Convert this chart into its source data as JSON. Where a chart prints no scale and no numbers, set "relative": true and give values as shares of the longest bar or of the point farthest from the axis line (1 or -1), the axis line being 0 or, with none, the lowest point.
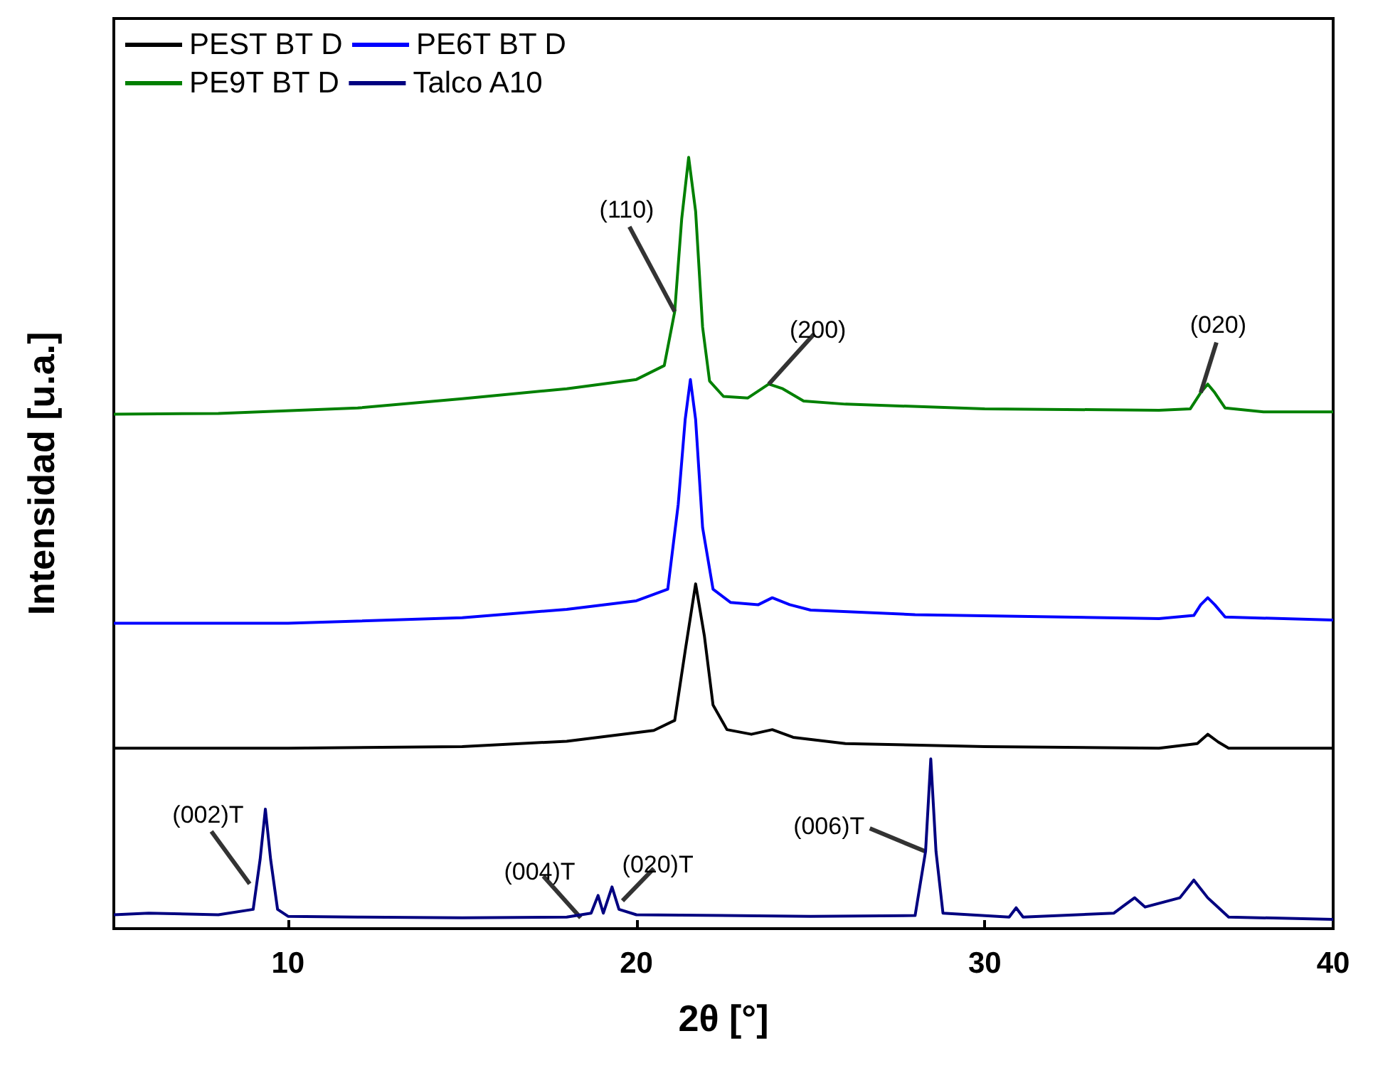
{
  "chart_data": {
    "type": "line",
    "xlabel": "2θ [°]",
    "ylabel": "Intensidad [u.a.]",
    "relative": true,
    "xlim": [
      5,
      40
    ],
    "xticks": [
      10,
      20,
      30,
      40
    ],
    "legend": "top left",
    "grid": false,
    "marker": "none",
    "line_style": "solid",
    "series": [
      {
        "name": "PEST BT D",
        "color": "#000000",
        "x": [
          5,
          10,
          15,
          18,
          20.5,
          21.1,
          21.4,
          21.7,
          21.95,
          22.2,
          22.6,
          23.3,
          23.9,
          24.5,
          26,
          30,
          35,
          36.1,
          36.4,
          36.7,
          37,
          40
        ],
        "values": [
          0.234,
          0.234,
          0.236,
          0.243,
          0.257,
          0.27,
          0.36,
          0.447,
          0.38,
          0.29,
          0.258,
          0.252,
          0.258,
          0.248,
          0.24,
          0.236,
          0.234,
          0.24,
          0.252,
          0.242,
          0.234,
          0.234
        ]
      },
      {
        "name": "PE6T BT D",
        "color": "#0000ff",
        "x": [
          5,
          10,
          15,
          18,
          20,
          20.9,
          21.2,
          21.4,
          21.55,
          21.7,
          21.9,
          22.2,
          22.7,
          23.5,
          23.9,
          24.4,
          25,
          28,
          35,
          36,
          36.2,
          36.4,
          36.6,
          36.9,
          40
        ],
        "values": [
          0.396,
          0.396,
          0.403,
          0.414,
          0.425,
          0.44,
          0.55,
          0.66,
          0.712,
          0.66,
          0.52,
          0.44,
          0.423,
          0.42,
          0.429,
          0.42,
          0.413,
          0.407,
          0.402,
          0.406,
          0.42,
          0.429,
          0.42,
          0.404,
          0.4
        ]
      },
      {
        "name": "PE9T BT D",
        "color": "#008000",
        "x": [
          5,
          8,
          12,
          15,
          18,
          20,
          20.8,
          21.1,
          21.3,
          21.5,
          21.7,
          21.9,
          22.1,
          22.5,
          23.2,
          23.8,
          24.2,
          24.8,
          26,
          30,
          35,
          35.9,
          36.2,
          36.4,
          36.6,
          36.9,
          38,
          40
        ],
        "values": [
          0.667,
          0.668,
          0.675,
          0.687,
          0.7,
          0.712,
          0.73,
          0.8,
          0.92,
          1,
          0.93,
          0.78,
          0.71,
          0.69,
          0.688,
          0.706,
          0.7,
          0.684,
          0.68,
          0.674,
          0.672,
          0.674,
          0.695,
          0.706,
          0.695,
          0.675,
          0.67,
          0.67
        ]
      },
      {
        "name": "Talco A10",
        "color": "#000080",
        "x": [
          5,
          6,
          8,
          9,
          9.2,
          9.35,
          9.5,
          9.7,
          10,
          12,
          15,
          18,
          18.7,
          18.9,
          19.05,
          19.3,
          19.5,
          20,
          25,
          28,
          28.3,
          28.45,
          28.6,
          28.8,
          30.7,
          30.9,
          31.1,
          33.7,
          34,
          34.3,
          34.6,
          35.6,
          36,
          36.4,
          37,
          40
        ],
        "values": [
          0.018,
          0.02,
          0.018,
          0.025,
          0.09,
          0.155,
          0.09,
          0.025,
          0.016,
          0.015,
          0.014,
          0.015,
          0.02,
          0.043,
          0.02,
          0.054,
          0.025,
          0.018,
          0.016,
          0.017,
          0.1,
          0.22,
          0.1,
          0.02,
          0.015,
          0.027,
          0.015,
          0.02,
          0.03,
          0.04,
          0.028,
          0.04,
          0.063,
          0.04,
          0.015,
          0.012
        ]
      }
    ],
    "annotations": [
      {
        "text": "(110)",
        "x": 21.1,
        "y": 0.8
      },
      {
        "text": "(200)",
        "x": 23.8,
        "y": 0.706
      },
      {
        "text": "(020)",
        "x": 36.2,
        "y": 0.695
      },
      {
        "text": "(002)T",
        "x": 8.9,
        "y": 0.058
      },
      {
        "text": "(004)T",
        "x": 18.4,
        "y": 0.014
      },
      {
        "text": "(020)T",
        "x": 19.6,
        "y": 0.036
      },
      {
        "text": "(006)T",
        "x": 28.3,
        "y": 0.1
      }
    ]
  }
}
